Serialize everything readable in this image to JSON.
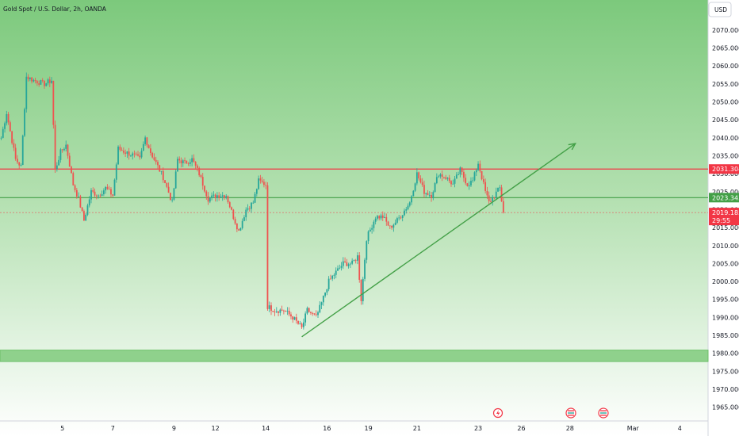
{
  "header": {
    "title": "Gold Spot / U.S. Dollar, 2h, OANDA",
    "currency_button": "USD"
  },
  "colors": {
    "up": "#26a69a",
    "down": "#ef5350",
    "resistance": "#f23645",
    "support_line": "#4caf50",
    "trendline": "#43a047",
    "bg_top": "#7cc97c",
    "bg_bottom": "#ffffff",
    "zone": "#8fd18c",
    "price_tag": "#f23645",
    "support_tag": "#43a047"
  },
  "chart_data": {
    "type": "candlestick",
    "title": "Gold Spot / U.S. Dollar, 2h, OANDA",
    "xlabel": "",
    "ylabel": "",
    "ylim": [
      1962.5,
      2073.5
    ],
    "y_ticks": [
      "2070.000",
      "2065.000",
      "2060.000",
      "2055.000",
      "2050.000",
      "2045.000",
      "2040.000",
      "2035.000",
      "2030.000",
      "2025.000",
      "2020.000",
      "2015.000",
      "2010.000",
      "2005.000",
      "2000.000",
      "1995.000",
      "1990.000",
      "1985.000",
      "1980.000",
      "1975.000",
      "1970.000",
      "1965.000"
    ],
    "x_ticks": [
      "5",
      "7",
      "9",
      "12",
      "14",
      "16",
      "19",
      "21",
      "23",
      "26",
      "28",
      "Mar",
      "4"
    ],
    "horizontal_lines": [
      {
        "label": "2031.304",
        "value": 2031.304,
        "color": "#f23645"
      },
      {
        "label": "2023.343",
        "value": 2023.343,
        "color": "#43a047"
      }
    ],
    "current_price": {
      "value": 2019.185,
      "label": "2019.185",
      "countdown": "29:55"
    },
    "support_zone": {
      "from": 1978.6,
      "to": 1980.0
    },
    "trendline": {
      "from": {
        "bar": 167,
        "price": 1984.6
      },
      "to": {
        "bar": 319,
        "price": 2038.4
      }
    },
    "grid": false,
    "legend": "none",
    "candle_close_path": [
      [
        0,
        2040
      ],
      [
        3,
        2047
      ],
      [
        8,
        2034
      ],
      [
        11,
        2032
      ],
      [
        14,
        2057
      ],
      [
        18,
        2056
      ],
      [
        24,
        2055
      ],
      [
        28,
        2056
      ],
      [
        30,
        2031
      ],
      [
        33,
        2036
      ],
      [
        36,
        2038
      ],
      [
        40,
        2027
      ],
      [
        43,
        2023
      ],
      [
        46,
        2017
      ],
      [
        50,
        2025
      ],
      [
        54,
        2024
      ],
      [
        58,
        2026
      ],
      [
        62,
        2024
      ],
      [
        65,
        2037
      ],
      [
        69,
        2036
      ],
      [
        74,
        2035
      ],
      [
        77,
        2034
      ],
      [
        80,
        2040
      ],
      [
        83,
        2036
      ],
      [
        87,
        2032
      ],
      [
        90,
        2029
      ],
      [
        95,
        2022
      ],
      [
        98,
        2034
      ],
      [
        102,
        2033
      ],
      [
        106,
        2034
      ],
      [
        110,
        2030
      ],
      [
        115,
        2023
      ],
      [
        120,
        2024
      ],
      [
        125,
        2024
      ],
      [
        129,
        2018
      ],
      [
        132,
        2014
      ],
      [
        136,
        2020
      ],
      [
        140,
        2022
      ],
      [
        143,
        2028
      ],
      [
        147,
        2027
      ],
      [
        148,
        1993
      ],
      [
        152,
        1992
      ],
      [
        157,
        1992
      ],
      [
        162,
        1990
      ],
      [
        167,
        1987
      ],
      [
        170,
        1992
      ],
      [
        175,
        1990
      ],
      [
        178,
        1994
      ],
      [
        182,
        2000
      ],
      [
        185,
        2002
      ],
      [
        190,
        2005
      ],
      [
        195,
        2005
      ],
      [
        198,
        2007
      ],
      [
        200,
        1995
      ],
      [
        203,
        2012
      ],
      [
        208,
        2018
      ],
      [
        212,
        2018
      ],
      [
        216,
        2015
      ],
      [
        220,
        2017
      ],
      [
        223,
        2019
      ],
      [
        227,
        2022
      ],
      [
        231,
        2030
      ],
      [
        235,
        2025
      ],
      [
        239,
        2024
      ],
      [
        243,
        2030
      ],
      [
        247,
        2029
      ],
      [
        251,
        2027
      ],
      [
        255,
        2031
      ],
      [
        259,
        2027
      ],
      [
        262,
        2028
      ],
      [
        265,
        2033
      ],
      [
        269,
        2025
      ],
      [
        271,
        2022
      ],
      [
        274,
        2024
      ],
      [
        277,
        2026
      ],
      [
        279,
        2019.2
      ]
    ],
    "x_tick_bars": [
      34,
      62,
      96,
      119,
      147,
      181,
      204,
      231,
      265,
      289,
      316,
      351,
      377
    ]
  }
}
